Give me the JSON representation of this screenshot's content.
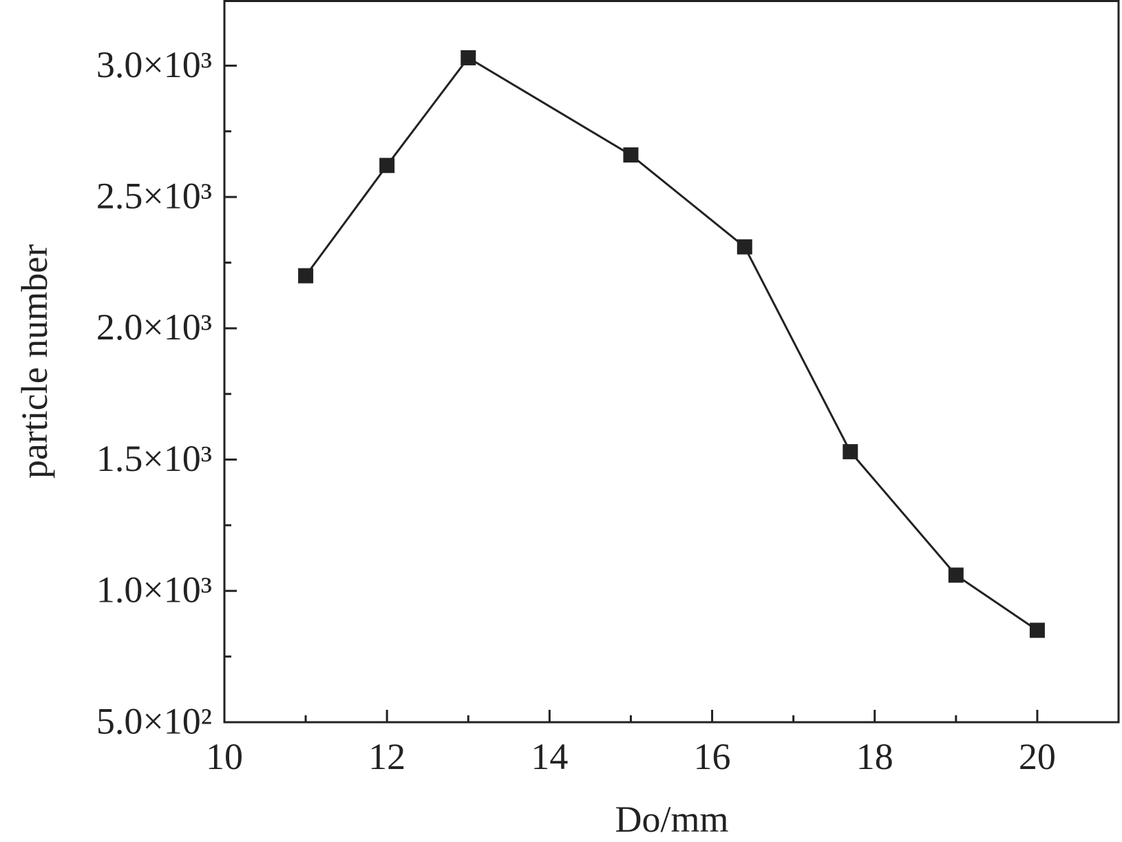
{
  "chart_data": {
    "type": "line",
    "x_label": "Do/mm",
    "y_label": "particle number",
    "x": [
      11,
      12,
      13,
      15,
      16.4,
      17.7,
      19,
      20
    ],
    "series": [
      {
        "name": "particle number",
        "color": "#222222",
        "values": [
          2200,
          2620,
          3030,
          2660,
          2310,
          1530,
          1060,
          850
        ]
      }
    ],
    "xlim": [
      10,
      21
    ],
    "xticks": [
      10,
      12,
      14,
      16,
      18,
      20
    ],
    "xminor": [
      11,
      13,
      15,
      17,
      19
    ],
    "ylim": [
      500,
      3250
    ],
    "yticks": [
      {
        "value": 500,
        "label": "5.0×10²"
      },
      {
        "value": 1000,
        "label": "1.0×10³"
      },
      {
        "value": 1500,
        "label": "1.5×10³"
      },
      {
        "value": 2000,
        "label": "2.0×10³"
      },
      {
        "value": 2500,
        "label": "2.5×10³"
      },
      {
        "value": 3000,
        "label": "3.0×10³"
      }
    ],
    "yminor": [
      750,
      1250,
      1750,
      2250,
      2750
    ],
    "grid": false
  }
}
